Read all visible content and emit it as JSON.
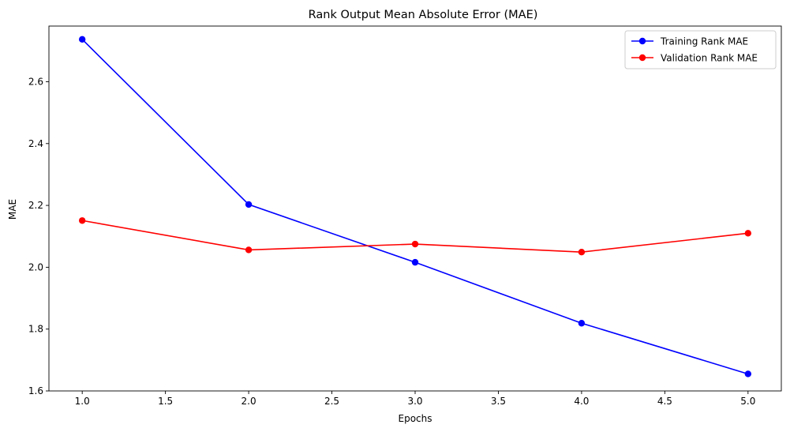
{
  "chart_data": {
    "type": "line",
    "title": "Rank Output Mean Absolute Error (MAE)",
    "xlabel": "Epochs",
    "ylabel": "MAE",
    "x": [
      1,
      2,
      3,
      4,
      5
    ],
    "xlim": [
      0.8,
      5.2
    ],
    "ylim": [
      1.6,
      2.78
    ],
    "xticks": [
      "1.0",
      "1.5",
      "2.0",
      "2.5",
      "3.0",
      "3.5",
      "4.0",
      "4.5",
      "5.0"
    ],
    "yticks": [
      "1.6",
      "1.8",
      "2.0",
      "2.2",
      "2.4",
      "2.6"
    ],
    "grid": false,
    "legend": "top-right",
    "series": [
      {
        "name": "Training Rank MAE",
        "color": "#0000ff",
        "marker": "circle",
        "values": [
          2.737,
          2.203,
          2.016,
          1.819,
          1.655
        ]
      },
      {
        "name": "Validation Rank MAE",
        "color": "#ff0000",
        "marker": "circle",
        "values": [
          2.151,
          2.056,
          2.075,
          2.049,
          2.11
        ]
      }
    ]
  }
}
